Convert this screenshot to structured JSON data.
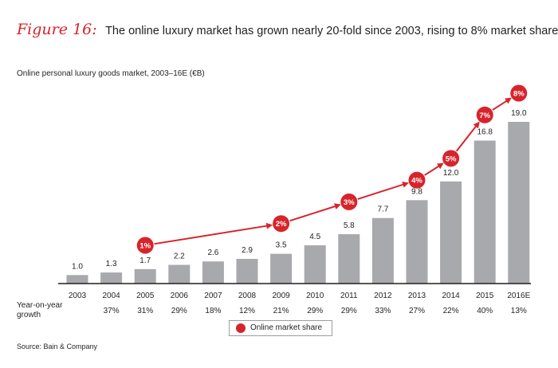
{
  "figure_label": "Figure 16:",
  "figure_title": "The online luxury market has grown nearly 20-fold since 2003, rising to 8% market share",
  "source": "Source: Bain & Company",
  "chart_data": {
    "type": "bar",
    "title": "Online personal luxury goods market, 2003–16E (€B)",
    "categories": [
      "2003",
      "2004",
      "2005",
      "2006",
      "2007",
      "2008",
      "2009",
      "2010",
      "2011",
      "2012",
      "2013",
      "2014",
      "2015",
      "2016E"
    ],
    "values": [
      1.0,
      1.3,
      1.7,
      2.2,
      2.6,
      2.9,
      3.5,
      4.5,
      5.8,
      7.7,
      9.8,
      12.0,
      16.8,
      19.0
    ],
    "value_labels": [
      "1.0",
      "1.3",
      "1.7",
      "2.2",
      "2.6",
      "2.9",
      "3.5",
      "4.5",
      "5.8",
      "7.7",
      "9.8",
      "12.0",
      "16.8",
      "19.0"
    ],
    "growth_label": "Year-on-year growth",
    "growth_line1": "Year-on-year",
    "growth_line2": "growth",
    "growth": [
      "",
      "37%",
      "31%",
      "29%",
      "18%",
      "12%",
      "21%",
      "29%",
      "29%",
      "33%",
      "27%",
      "22%",
      "40%",
      "13%"
    ],
    "market_share": [
      {
        "year": "2005",
        "value": 1,
        "label": "1%"
      },
      {
        "year": "2009",
        "value": 2,
        "label": "2%"
      },
      {
        "year": "2011",
        "value": 3,
        "label": "3%"
      },
      {
        "year": "2013",
        "value": 4,
        "label": "4%"
      },
      {
        "year": "2014",
        "value": 5,
        "label": "5%"
      },
      {
        "year": "2015",
        "value": 7,
        "label": "7%"
      },
      {
        "year": "2016E",
        "value": 8,
        "label": "8%"
      }
    ],
    "legend": "Online market share",
    "ylim": [
      0,
      19.0
    ],
    "grid": false,
    "colors": {
      "bars": "#a7a9ac",
      "share": "#d7242b",
      "axis": "#231f20"
    }
  }
}
